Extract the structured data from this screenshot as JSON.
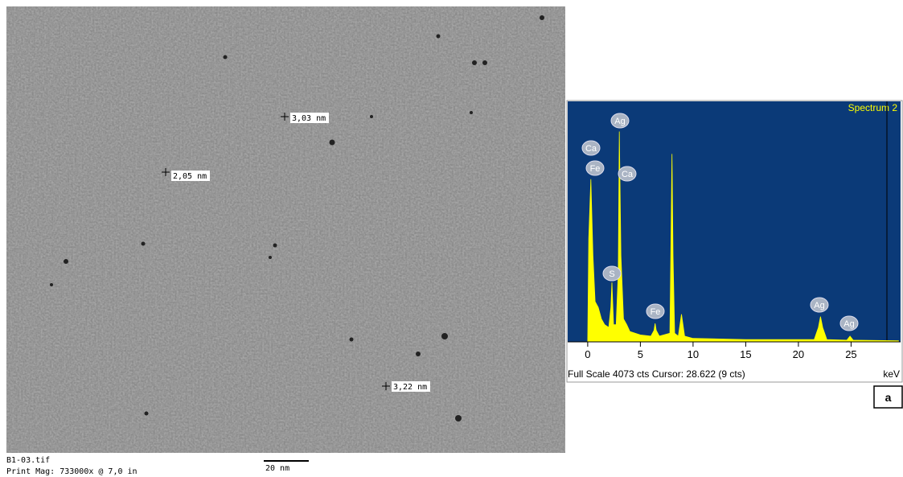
{
  "tem": {
    "measurements": [
      "3,03 nm",
      "2,05 nm",
      "3,22 nm"
    ],
    "filename": "B1-03.tif",
    "print_mag": "Print Mag: 733000x @ 7,0 in",
    "scale_bar": "20 nm"
  },
  "chart_data": {
    "type": "area",
    "title": "Spectrum 2",
    "color": "#ffff00",
    "background": "#0b3a78",
    "x": [
      0,
      0.1,
      0.3,
      0.5,
      0.7,
      1.0,
      1.3,
      1.6,
      2.0,
      2.2,
      2.3,
      2.45,
      2.7,
      2.9,
      3.0,
      3.15,
      3.4,
      3.7,
      4.0,
      5.0,
      6.0,
      6.3,
      6.4,
      6.5,
      6.8,
      7.8,
      8.0,
      8.1,
      8.25,
      8.6,
      8.9,
      9.2,
      10,
      15,
      21.5,
      21.9,
      22.1,
      22.3,
      22.7,
      24.6,
      24.9,
      25.2,
      29.5
    ],
    "values": [
      0,
      1800,
      2830,
      1500,
      700,
      600,
      400,
      300,
      250,
      600,
      1035,
      300,
      300,
      1200,
      3660,
      1500,
      400,
      300,
      180,
      120,
      100,
      200,
      320,
      200,
      100,
      150,
      3270,
      1500,
      150,
      100,
      480,
      100,
      60,
      40,
      40,
      250,
      440,
      250,
      40,
      30,
      100,
      30,
      20
    ],
    "xlim": [
      -1.9,
      29.7
    ],
    "xticks": [
      0,
      5,
      10,
      15,
      20,
      25
    ],
    "ylim": [
      0,
      4073
    ],
    "peak_labels": [
      "Ag",
      "Ca",
      "Fe",
      "Ca",
      "S",
      "Fe",
      "Ag",
      "Ag"
    ],
    "footer": "Full Scale 4073 cts Cursor: 28.622  (9 cts)",
    "x_label": "keV"
  },
  "panel_label": "a"
}
